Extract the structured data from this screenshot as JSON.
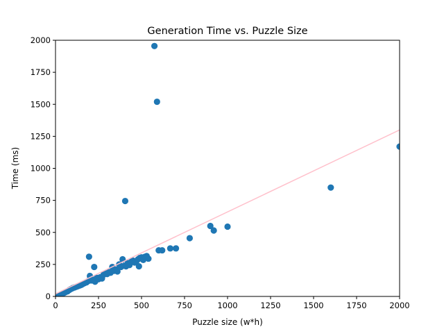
{
  "chart_data": {
    "type": "scatter",
    "title": "Generation Time vs. Puzzle Size",
    "xlabel": "Puzzle size (w*h)",
    "ylabel": "Time (ms)",
    "xlim": [
      0,
      2000
    ],
    "ylim": [
      0,
      2000
    ],
    "x_ticks": [
      0,
      250,
      500,
      750,
      1000,
      1250,
      1500,
      1750,
      2000
    ],
    "y_ticks": [
      0,
      250,
      500,
      750,
      1000,
      1250,
      1500,
      1750,
      2000
    ],
    "grid": false,
    "legend": "none",
    "colors": {
      "points": "#1f77b4",
      "trend": "#ffc0cb",
      "axes": "#000000"
    },
    "series": [
      {
        "kind": "scatter",
        "x": [
          20,
          30,
          40,
          50,
          60,
          70,
          80,
          90,
          100,
          110,
          120,
          130,
          140,
          150,
          160,
          170,
          180,
          190,
          195,
          200,
          210,
          220,
          225,
          230,
          240,
          250,
          260,
          270,
          280,
          290,
          300,
          310,
          320,
          330,
          340,
          350,
          360,
          370,
          380,
          390,
          400,
          405,
          410,
          420,
          430,
          440,
          450,
          460,
          470,
          480,
          485,
          490,
          500,
          510,
          520,
          530,
          540,
          575,
          590,
          600,
          620,
          667,
          700,
          780,
          900,
          920,
          1000,
          1600,
          2000
        ],
        "y": [
          5,
          12,
          20,
          28,
          35,
          40,
          50,
          58,
          65,
          70,
          75,
          80,
          85,
          90,
          98,
          105,
          110,
          120,
          310,
          160,
          125,
          130,
          230,
          115,
          145,
          135,
          150,
          140,
          170,
          180,
          175,
          190,
          185,
          230,
          200,
          210,
          195,
          250,
          230,
          290,
          240,
          745,
          235,
          260,
          245,
          270,
          280,
          265,
          275,
          290,
          235,
          300,
          305,
          285,
          310,
          315,
          295,
          1955,
          1520,
          360,
          360,
          375,
          375,
          455,
          550,
          515,
          545,
          850,
          1170
        ]
      },
      {
        "kind": "line",
        "x": [
          0,
          2000
        ],
        "y": [
          20,
          1300
        ]
      }
    ]
  }
}
